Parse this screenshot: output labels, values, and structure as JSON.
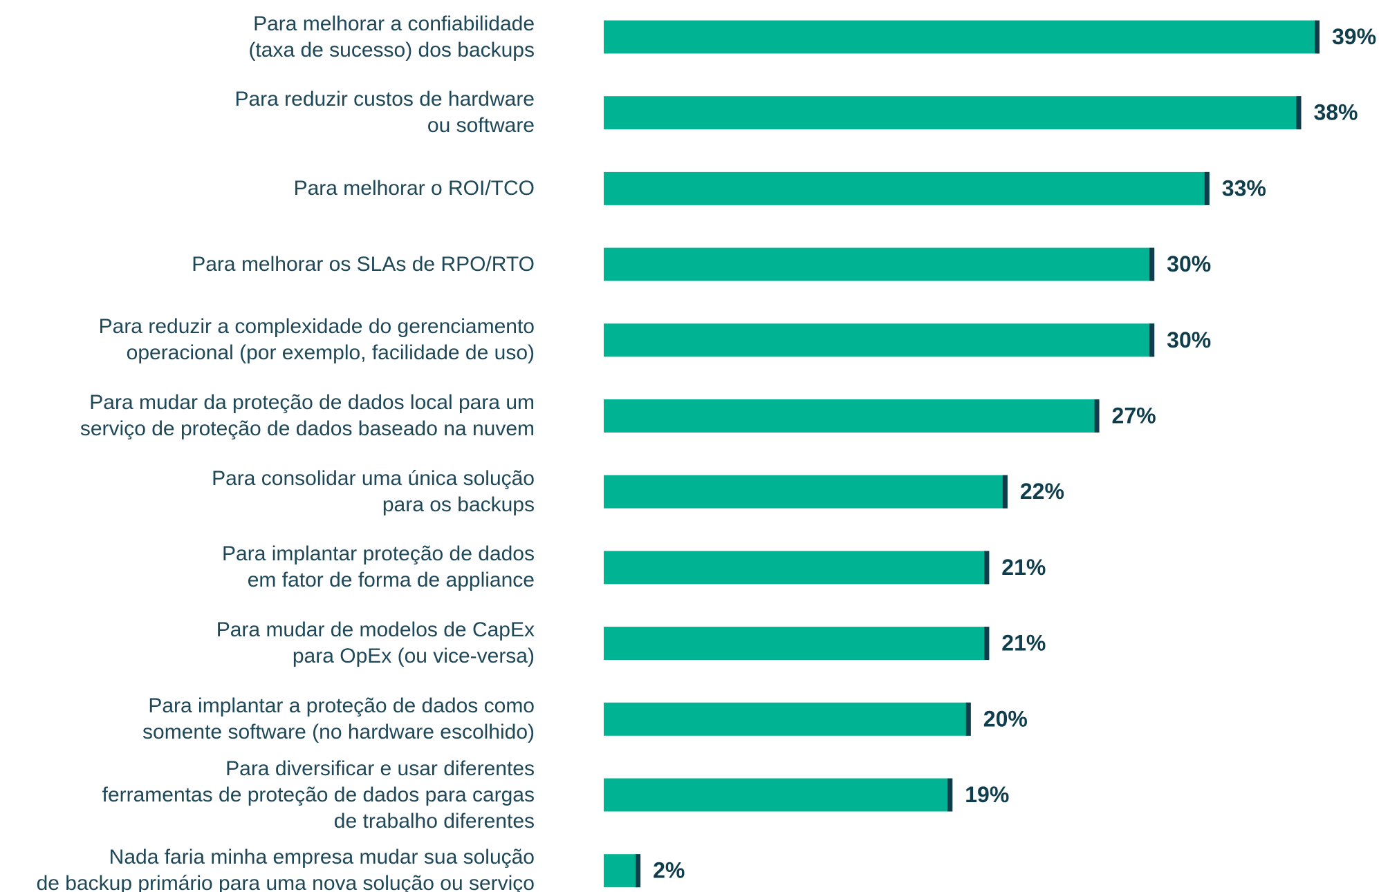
{
  "chart_data": {
    "type": "bar",
    "orientation": "horizontal",
    "categories": [
      "Para melhorar a confiabilidade\n(taxa de sucesso) dos backups",
      "Para reduzir custos de hardware\nou software",
      "Para melhorar o ROI/TCO",
      "Para melhorar os SLAs de RPO/RTO",
      "Para reduzir a complexidade do gerenciamento\noperacional (por exemplo, facilidade de uso)",
      "Para mudar da proteção de dados local para um\nserviço de proteção de dados baseado na nuvem",
      "Para consolidar uma única solução\npara os backups",
      "Para implantar proteção de dados\nem fator de forma de appliance",
      "Para mudar de modelos de CapEx\npara OpEx (ou vice-versa)",
      "Para implantar a proteção de dados como\nsomente software (no hardware escolhido)",
      "Para diversificar e usar diferentes\nferramentas de proteção de dados para cargas\nde trabalho diferentes",
      "Nada faria minha empresa mudar sua solução\nde backup primário para uma nova solução ou serviço"
    ],
    "values": [
      39,
      38,
      33,
      30,
      30,
      27,
      22,
      21,
      21,
      20,
      19,
      2
    ],
    "value_labels": [
      "39%",
      "38%",
      "33%",
      "30%",
      "30%",
      "27%",
      "22%",
      "21%",
      "21%",
      "20%",
      "19%",
      "2%"
    ],
    "color": "#00b393",
    "cap_color": "#0f3d4c"
  }
}
